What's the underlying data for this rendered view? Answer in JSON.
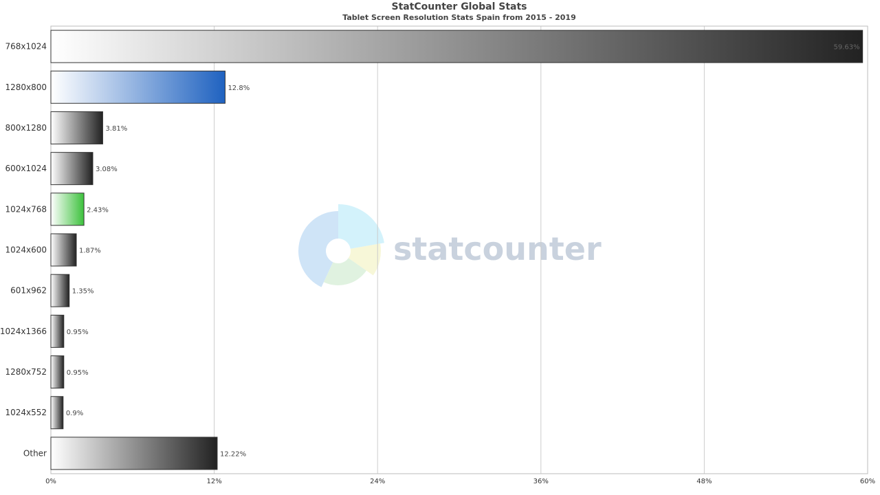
{
  "chart_data": {
    "type": "bar",
    "orientation": "horizontal",
    "title": "StatCounter Global Stats",
    "subtitle": "Tablet Screen Resolution Stats Spain from 2015 - 2019",
    "categories": [
      "768x1024",
      "1280x800",
      "800x1280",
      "600x1024",
      "1024x768",
      "1024x600",
      "601x962",
      "1024x1366",
      "1280x752",
      "1024x552",
      "Other"
    ],
    "values": [
      59.63,
      12.8,
      3.81,
      3.08,
      2.43,
      1.87,
      1.35,
      0.95,
      0.95,
      0.9,
      12.22
    ],
    "value_labels": [
      "59.63%",
      "12.8%",
      "3.81%",
      "3.08%",
      "2.43%",
      "1.87%",
      "1.35%",
      "0.95%",
      "0.95%",
      "0.9%",
      "12.22%"
    ],
    "bar_colors": [
      "#222222",
      "#1f62c0",
      "#222222",
      "#222222",
      "#3cc13c",
      "#222222",
      "#222222",
      "#222222",
      "#222222",
      "#222222",
      "#222222"
    ],
    "xlim": [
      0,
      60
    ],
    "xticks": [
      0,
      12,
      24,
      36,
      48,
      60
    ],
    "xtick_labels": [
      "0%",
      "12%",
      "24%",
      "36%",
      "48%",
      "60%"
    ],
    "grid": true,
    "legend": "none",
    "xlabel": "",
    "ylabel": ""
  },
  "watermark": {
    "text": "statcounter",
    "colors": [
      "#cfe4f7",
      "#d3f2fb",
      "#f7f7d8",
      "#e0f2e0"
    ]
  }
}
